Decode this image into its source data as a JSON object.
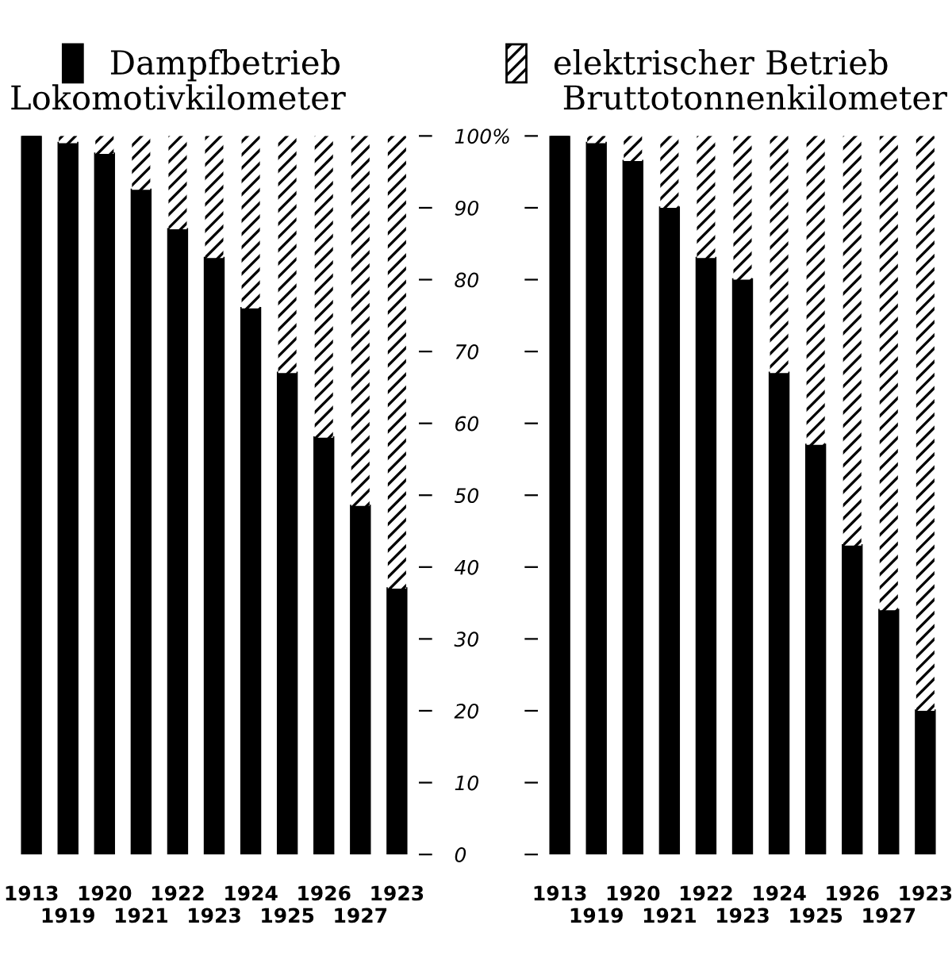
{
  "chart_data": [
    {
      "type": "bar",
      "stacked": true,
      "title": "Lokomotivkilometer",
      "legend": "top",
      "categories": [
        "1913",
        "1919",
        "1920",
        "1921",
        "1922",
        "1923",
        "1924",
        "1925",
        "1926",
        "1927",
        "1923"
      ],
      "series": [
        {
          "name": "Dampfbetrieb",
          "color": "#000000",
          "values": [
            100,
            99,
            97.5,
            92.5,
            87,
            83,
            76,
            67,
            58,
            48.5,
            37
          ]
        },
        {
          "name": "elektrischer Betrieb",
          "color": "#ffffff",
          "values": [
            0,
            1,
            2.5,
            7.5,
            13,
            17,
            24,
            33,
            42,
            51.5,
            63
          ]
        }
      ],
      "ylim": [
        0,
        100
      ],
      "yticks": [
        0,
        10,
        20,
        30,
        40,
        50,
        60,
        70,
        80,
        90,
        {
          "value": 100,
          "label": "100%"
        }
      ]
    },
    {
      "type": "bar",
      "stacked": true,
      "title": "Bruttotonnenkilometer",
      "tick_labels": "x",
      "categories": [
        "1913",
        "1919",
        "1920",
        "1921",
        "1922",
        "1923",
        "1924",
        "1925",
        "1926",
        "1927",
        "1923"
      ],
      "series": [
        {
          "color": "#000000",
          "values": [
            100,
            99,
            96.5,
            90,
            83,
            80,
            67,
            57,
            43,
            34,
            20
          ]
        },
        {
          "color": "#ffffff",
          "values": [
            0,
            1,
            3.5,
            10,
            17,
            20,
            33,
            43,
            57,
            66,
            80
          ]
        }
      ],
      "ylim": [
        0,
        100
      ],
      "yticks": [
        0,
        10,
        20,
        30,
        40,
        50,
        60,
        70,
        80,
        90,
        100
      ]
    }
  ]
}
